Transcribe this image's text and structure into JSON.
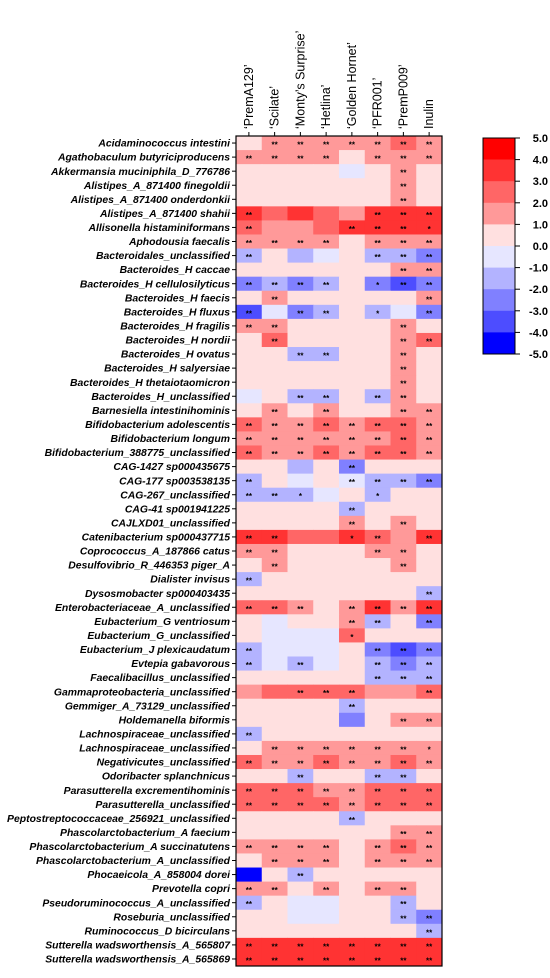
{
  "chart_data": {
    "type": "heatmap",
    "columns": [
      "‘PremA129’",
      "‘Scilate’",
      "‘Monty’s Surprise’",
      "‘Hetlina’",
      "‘Golden Hornet’",
      "‘PFR001’",
      "‘PremP009’",
      "Inulin"
    ],
    "rows": [
      "Acidaminococcus intestini",
      "Agathobaculum butyriciproducens",
      "Akkermansia muciniphila_D_776786",
      "Alistipes_A_871400 finegoldii",
      "Alistipes_A_871400 onderdonkii",
      "Alistipes_A_871400 shahii",
      "Allisonella histaminiformans",
      "Aphodousia faecalis",
      "Bacteroidales_unclassified",
      "Bacteroides_H caccae",
      "Bacteroides_H cellulosilyticus",
      "Bacteroides_H faecis",
      "Bacteroides_H fluxus",
      "Bacteroides_H fragilis",
      "Bacteroides_H nordii",
      "Bacteroides_H ovatus",
      "Bacteroides_H salyersiae",
      "Bacteroides_H thetaiotaomicron",
      "Bacteroides_H_unclassified",
      "Barnesiella intestinihominis",
      "Bifidobacterium adolescentis",
      "Bifidobacterium longum",
      "Bifidobacterium_388775_unclassified",
      "CAG-1427 sp000435675",
      "CAG-177 sp003538135",
      "CAG-267_unclassified",
      "CAG-41 sp001941225",
      "CAJLXD01_unclassified",
      "Catenibacterium sp000437715",
      "Coprococcus_A_187866 catus",
      "Desulfovibrio_R_446353 piger_A",
      "Dialister invisus",
      "Dysosmobacter sp000403435",
      "Enterobacteriaceae_A_unclassified",
      "Eubacterium_G ventriosum",
      "Eubacterium_G_unclassified",
      "Eubacterium_J plexicaudatum",
      "Evtepia gabavorous",
      "Faecalibacillus_unclassified",
      "Gammaproteobacteria_unclassified",
      "Gemmiger_A_73129_unclassified",
      "Holdemanella biformis",
      "Lachnospiraceae_unclassified",
      "Lachnospiraceae_unclassified",
      "Negativicutes_unclassified",
      "Odoribacter splanchnicus",
      "Parasutterella excrementihominis",
      "Parasutterella_unclassified",
      "Peptostreptococcaceae_256921_unclassified",
      "Phascolarctobacterium_A faecium",
      "Phascolarctobacterium_A succinatutens",
      "Phascolarctobacterium_A_unclassified",
      "Phocaeicola_A_858004 dorei",
      "Prevotella copri",
      "Pseudoruminococcus_A_unclassified",
      "Roseburia_unclassified",
      "Ruminococcus_D bicirculans",
      "Sutterella wadsworthensis_A_565807",
      "Sutterella wadsworthensis_A_565869"
    ],
    "values": [
      [
        0.5,
        1.5,
        1.5,
        1.5,
        1.5,
        1.5,
        2.5,
        1.5
      ],
      [
        1.5,
        1.5,
        1.5,
        1.5,
        0.5,
        1.5,
        1.5,
        1.5
      ],
      [
        0.5,
        0.5,
        0.5,
        0.5,
        -0.5,
        0.5,
        1.5,
        0.5
      ],
      [
        0.5,
        0.5,
        0.5,
        0.5,
        0.5,
        0.5,
        1.5,
        0.5
      ],
      [
        0.5,
        0.5,
        0.5,
        0.5,
        0.5,
        0.5,
        1.5,
        0.5
      ],
      [
        3.5,
        2.5,
        3.5,
        2.5,
        1.5,
        3.5,
        3.5,
        3.5
      ],
      [
        2.5,
        1.5,
        1.5,
        2.5,
        3.5,
        3.5,
        3.5,
        3.5
      ],
      [
        1.5,
        1.5,
        1.5,
        1.5,
        0.5,
        1.5,
        1.5,
        1.5
      ],
      [
        -1.5,
        0.5,
        -1.5,
        -0.5,
        0.5,
        -1.5,
        -1.5,
        -2.5
      ],
      [
        0.5,
        0.5,
        0.5,
        0.5,
        0.5,
        0.5,
        1.5,
        1.5
      ],
      [
        -2.5,
        -1.5,
        -2.5,
        -1.5,
        0.5,
        -2.5,
        -3.5,
        -2.5
      ],
      [
        0.5,
        1.5,
        0.5,
        0.5,
        0.5,
        0.5,
        0.5,
        1.5
      ],
      [
        -3.5,
        -0.5,
        -2.5,
        -1.5,
        0.5,
        -1.5,
        -0.5,
        -2.5
      ],
      [
        1.5,
        1.5,
        0.5,
        0.5,
        0.5,
        0.5,
        1.5,
        0.5
      ],
      [
        0.5,
        2.5,
        0.5,
        0.5,
        0.5,
        0.5,
        1.5,
        2.5
      ],
      [
        0.5,
        0.5,
        -1.5,
        -1.5,
        0.5,
        0.5,
        1.5,
        0.5
      ],
      [
        0.5,
        0.5,
        0.5,
        0.5,
        0.5,
        0.5,
        1.5,
        0.5
      ],
      [
        0.5,
        0.5,
        0.5,
        0.5,
        0.5,
        0.5,
        1.5,
        0.5
      ],
      [
        -0.5,
        0.5,
        -1.5,
        -1.5,
        0.5,
        -1.5,
        1.5,
        0.5
      ],
      [
        0.5,
        1.5,
        0.5,
        1.5,
        0.5,
        0.5,
        1.5,
        1.5
      ],
      [
        2.5,
        1.5,
        1.5,
        2.5,
        1.5,
        2.5,
        2.5,
        1.5
      ],
      [
        1.5,
        1.5,
        1.5,
        1.5,
        1.5,
        1.5,
        2.5,
        1.5
      ],
      [
        2.5,
        1.5,
        1.5,
        2.5,
        1.5,
        2.5,
        2.5,
        1.5
      ],
      [
        0.5,
        0.5,
        -1.5,
        0.5,
        -2.5,
        0.5,
        0.5,
        0.5
      ],
      [
        -1.5,
        0.5,
        -0.5,
        0.5,
        -0.5,
        -1.5,
        -1.5,
        -2.5
      ],
      [
        -1.5,
        -1.5,
        -1.5,
        -0.5,
        0.5,
        -1.5,
        0.5,
        0.5
      ],
      [
        0.5,
        0.5,
        0.5,
        0.5,
        -1.5,
        0.5,
        0.5,
        0.5
      ],
      [
        0.5,
        0.5,
        0.5,
        0.5,
        1.5,
        0.5,
        1.5,
        0.5
      ],
      [
        3.5,
        3.5,
        2.5,
        2.5,
        3.5,
        2.5,
        1.5,
        3.5
      ],
      [
        1.5,
        1.5,
        0.5,
        0.5,
        0.5,
        1.5,
        1.5,
        0.5
      ],
      [
        0.5,
        1.5,
        0.5,
        0.5,
        0.5,
        0.5,
        1.5,
        0.5
      ],
      [
        -1.5,
        0.5,
        0.5,
        0.5,
        0.5,
        0.5,
        0.5,
        0.5
      ],
      [
        0.5,
        0.5,
        0.5,
        0.5,
        0.5,
        0.5,
        0.5,
        -1.5
      ],
      [
        2.5,
        2.5,
        1.5,
        0.5,
        1.5,
        3.5,
        1.5,
        3.5
      ],
      [
        0.5,
        -0.5,
        0.5,
        0.5,
        1.5,
        -1.5,
        0.5,
        -2.5
      ],
      [
        0.5,
        -0.5,
        -0.5,
        -0.5,
        2.5,
        0.5,
        0.5,
        0.5
      ],
      [
        -1.5,
        -0.5,
        -0.5,
        -0.5,
        0.5,
        -2.5,
        -3.5,
        -2.5
      ],
      [
        -1.5,
        -0.5,
        -1.5,
        -0.5,
        0.5,
        -1.5,
        -2.5,
        -1.5
      ],
      [
        0.5,
        0.5,
        0.5,
        0.5,
        0.5,
        -1.5,
        -1.5,
        -1.5
      ],
      [
        1.5,
        2.5,
        2.5,
        2.5,
        2.5,
        1.5,
        1.5,
        2.5
      ],
      [
        0.5,
        0.5,
        0.5,
        0.5,
        -1.5,
        0.5,
        0.5,
        0.5
      ],
      [
        0.5,
        0.5,
        0.5,
        0.5,
        -2.5,
        0.5,
        1.5,
        1.5
      ],
      [
        -1.5,
        0.5,
        0.5,
        0.5,
        0.5,
        0.5,
        0.5,
        0.5
      ],
      [
        0.5,
        1.5,
        1.5,
        1.5,
        1.5,
        1.5,
        1.5,
        1.5
      ],
      [
        2.5,
        1.5,
        1.5,
        2.5,
        1.5,
        1.5,
        2.5,
        1.5
      ],
      [
        0.5,
        0.5,
        -1.5,
        0.5,
        0.5,
        -1.5,
        -1.5,
        0.5
      ],
      [
        2.5,
        2.5,
        2.5,
        1.5,
        1.5,
        2.5,
        2.5,
        2.5
      ],
      [
        2.5,
        2.5,
        2.5,
        2.5,
        1.5,
        2.5,
        2.5,
        2.5
      ],
      [
        0.5,
        0.5,
        0.5,
        0.5,
        -1.5,
        0.5,
        0.5,
        0.5
      ],
      [
        0.5,
        0.5,
        0.5,
        0.5,
        0.5,
        0.5,
        1.5,
        1.5
      ],
      [
        1.5,
        1.5,
        1.5,
        1.5,
        0.5,
        1.5,
        2.5,
        1.5
      ],
      [
        0.5,
        1.5,
        1.5,
        1.5,
        0.5,
        1.5,
        1.5,
        1.5
      ],
      [
        -4.5,
        0.5,
        -1.5,
        0.5,
        0.5,
        0.5,
        0.5,
        0.5
      ],
      [
        1.5,
        1.5,
        0.5,
        1.5,
        0.5,
        1.5,
        1.5,
        0.5
      ],
      [
        -1.5,
        0.5,
        -0.5,
        -0.5,
        0.5,
        0.5,
        -1.5,
        0.5
      ],
      [
        0.5,
        0.5,
        -0.5,
        -0.5,
        0.5,
        0.5,
        -1.5,
        -2.5
      ],
      [
        0.5,
        0.5,
        0.5,
        0.5,
        0.5,
        0.5,
        0.5,
        -1.5
      ],
      [
        3.5,
        3.5,
        3.5,
        3.5,
        3.5,
        3.5,
        3.5,
        3.5
      ],
      [
        3.5,
        3.5,
        3.5,
        3.5,
        3.5,
        3.5,
        3.5,
        3.5
      ]
    ],
    "annotations": [
      [
        "",
        "**",
        "**",
        "**",
        "**",
        "**",
        "**",
        "**"
      ],
      [
        "**",
        "**",
        "**",
        "**",
        "",
        "**",
        "**",
        "**"
      ],
      [
        "",
        "",
        "",
        "",
        "",
        "",
        "**",
        ""
      ],
      [
        "",
        "",
        "",
        "",
        "",
        "",
        "**",
        ""
      ],
      [
        "",
        "",
        "",
        "",
        "",
        "",
        "**",
        ""
      ],
      [
        "**",
        "",
        "",
        "",
        "",
        "**",
        "**",
        "**"
      ],
      [
        "**",
        "",
        "",
        "",
        "**",
        "**",
        "**",
        "*"
      ],
      [
        "**",
        "**",
        "**",
        "**",
        "",
        "**",
        "**",
        "**"
      ],
      [
        "**",
        "",
        "",
        "",
        "",
        "**",
        "**",
        "**"
      ],
      [
        "",
        "",
        "",
        "",
        "",
        "",
        "**",
        "**"
      ],
      [
        "**",
        "**",
        "**",
        "**",
        "",
        "*",
        "**",
        "**"
      ],
      [
        "",
        "**",
        "",
        "",
        "",
        "",
        "",
        "**"
      ],
      [
        "**",
        "",
        "**",
        "**",
        "",
        "*",
        "",
        "**"
      ],
      [
        "**",
        "**",
        "",
        "",
        "",
        "",
        "**",
        ""
      ],
      [
        "",
        "**",
        "",
        "",
        "",
        "",
        "**",
        "**"
      ],
      [
        "",
        "",
        "**",
        "**",
        "",
        "",
        "**",
        ""
      ],
      [
        "",
        "",
        "",
        "",
        "",
        "",
        "**",
        ""
      ],
      [
        "",
        "",
        "",
        "",
        "",
        "",
        "**",
        ""
      ],
      [
        "",
        "",
        "**",
        "**",
        "",
        "**",
        "**",
        ""
      ],
      [
        "",
        "**",
        "",
        "**",
        "",
        "",
        "**",
        "**"
      ],
      [
        "**",
        "**",
        "**",
        "**",
        "**",
        "**",
        "**",
        "**"
      ],
      [
        "**",
        "**",
        "**",
        "**",
        "**",
        "**",
        "**",
        "**"
      ],
      [
        "**",
        "**",
        "**",
        "**",
        "**",
        "**",
        "**",
        "**"
      ],
      [
        "",
        "",
        "",
        "",
        "**",
        "",
        "",
        ""
      ],
      [
        "**",
        "",
        "",
        "",
        "**",
        "**",
        "**",
        "**"
      ],
      [
        "**",
        "**",
        "*",
        "",
        "",
        "*",
        "",
        ""
      ],
      [
        "",
        "",
        "",
        "",
        "**",
        "",
        "",
        ""
      ],
      [
        "",
        "",
        "",
        "",
        "**",
        "",
        "**",
        ""
      ],
      [
        "**",
        "**",
        "",
        "",
        "*",
        "**",
        "",
        "**"
      ],
      [
        "**",
        "**",
        "",
        "",
        "",
        "**",
        "**",
        ""
      ],
      [
        "",
        "**",
        "",
        "",
        "",
        "",
        "**",
        ""
      ],
      [
        "**",
        "",
        "",
        "",
        "",
        "",
        "",
        ""
      ],
      [
        "",
        "",
        "",
        "",
        "",
        "",
        "",
        "**"
      ],
      [
        "**",
        "**",
        "**",
        "",
        "**",
        "**",
        "**",
        "**"
      ],
      [
        "",
        "",
        "",
        "",
        "**",
        "**",
        "",
        "**"
      ],
      [
        "",
        "",
        "",
        "",
        "*",
        "",
        "",
        ""
      ],
      [
        "**",
        "",
        "",
        "",
        "",
        "**",
        "**",
        "**"
      ],
      [
        "**",
        "",
        "**",
        "",
        "",
        "**",
        "**",
        "**"
      ],
      [
        "",
        "",
        "",
        "",
        "",
        "**",
        "**",
        "**"
      ],
      [
        "",
        "",
        "**",
        "**",
        "**",
        "",
        "",
        "**"
      ],
      [
        "",
        "",
        "",
        "",
        "**",
        "",
        "",
        ""
      ],
      [
        "",
        "",
        "",
        "",
        "",
        "",
        "**",
        "**"
      ],
      [
        "**",
        "",
        "",
        "",
        "",
        "",
        "",
        ""
      ],
      [
        "",
        "**",
        "**",
        "**",
        "**",
        "**",
        "**",
        "*"
      ],
      [
        "**",
        "**",
        "**",
        "**",
        "**",
        "**",
        "**",
        "**"
      ],
      [
        "",
        "",
        "**",
        "",
        "",
        "**",
        "**",
        ""
      ],
      [
        "**",
        "**",
        "**",
        "**",
        "**",
        "**",
        "**",
        "**"
      ],
      [
        "**",
        "**",
        "**",
        "**",
        "**",
        "**",
        "**",
        "**"
      ],
      [
        "",
        "",
        "",
        "",
        "**",
        "",
        "",
        ""
      ],
      [
        "",
        "",
        "",
        "",
        "",
        "",
        "**",
        "**"
      ],
      [
        "**",
        "**",
        "**",
        "**",
        "",
        "**",
        "**",
        "**"
      ],
      [
        "",
        "**",
        "**",
        "**",
        "",
        "**",
        "**",
        "**"
      ],
      [
        "",
        "",
        "**",
        "",
        "",
        "",
        "",
        ""
      ],
      [
        "**",
        "**",
        "",
        "**",
        "",
        "**",
        "**",
        ""
      ],
      [
        "**",
        "",
        "",
        "",
        "",
        "",
        "**",
        ""
      ],
      [
        "",
        "",
        "",
        "",
        "",
        "",
        "**",
        "**"
      ],
      [
        "",
        "",
        "",
        "",
        "",
        "",
        "",
        "**"
      ],
      [
        "**",
        "**",
        "**",
        "**",
        "**",
        "**",
        "**",
        "**"
      ],
      [
        "**",
        "**",
        "**",
        "**",
        "**",
        "**",
        "**",
        "**"
      ]
    ],
    "colorbar": {
      "ticks": [
        "5.0",
        "4.0",
        "3.0",
        "2.0",
        "1.0",
        "0.0",
        "-1.0",
        "-2.0",
        "-3.0",
        "-4.0",
        "-5.0"
      ],
      "levels": [
        {
          "min": 4,
          "max": 5,
          "color": "#ff0000"
        },
        {
          "min": 3,
          "max": 4,
          "color": "#ff3333"
        },
        {
          "min": 2,
          "max": 3,
          "color": "#ff6666"
        },
        {
          "min": 1,
          "max": 2,
          "color": "#ff9999"
        },
        {
          "min": 0,
          "max": 1,
          "color": "#ffe0e0"
        },
        {
          "min": -1,
          "max": 0,
          "color": "#e6e6ff"
        },
        {
          "min": -2,
          "max": -1,
          "color": "#b3b3ff"
        },
        {
          "min": -3,
          "max": -2,
          "color": "#8080ff"
        },
        {
          "min": -4,
          "max": -3,
          "color": "#4d4dff"
        },
        {
          "min": -5,
          "max": -4,
          "color": "#0000ff"
        }
      ]
    },
    "range": [
      -5,
      5
    ]
  }
}
